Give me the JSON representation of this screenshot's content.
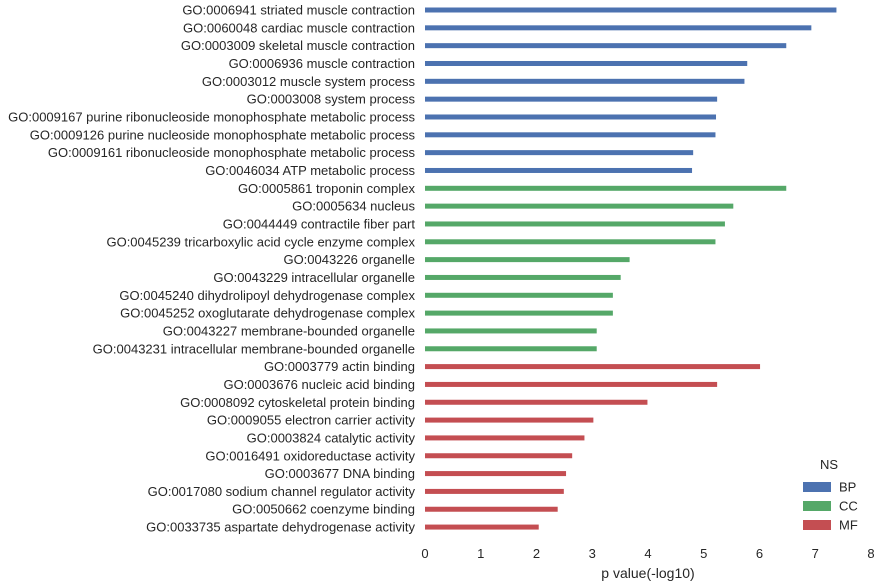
{
  "chart_data": {
    "type": "bar",
    "orientation": "horizontal",
    "xlabel": "p value(-log10)",
    "ylabel": "",
    "xlim": [
      0,
      8
    ],
    "xticks": [
      "0",
      "1",
      "2",
      "3",
      "4",
      "5",
      "6",
      "7",
      "8"
    ],
    "grid": false,
    "legend": {
      "title": "NS",
      "placement": "bottom-right",
      "entries": [
        {
          "name": "BP",
          "color": "#4c72b0"
        },
        {
          "name": "CC",
          "color": "#55a868"
        },
        {
          "name": "MF",
          "color": "#c44e52"
        }
      ]
    },
    "bars": [
      {
        "label": "GO:0006941 striated muscle contraction",
        "value": 7.38,
        "ns": "BP"
      },
      {
        "label": "GO:0060048 cardiac muscle contraction",
        "value": 6.93,
        "ns": "BP"
      },
      {
        "label": "GO:0003009 skeletal muscle contraction",
        "value": 6.48,
        "ns": "BP"
      },
      {
        "label": "GO:0006936 muscle contraction",
        "value": 5.78,
        "ns": "BP"
      },
      {
        "label": "GO:0003012 muscle system process",
        "value": 5.73,
        "ns": "BP"
      },
      {
        "label": "GO:0003008 system process",
        "value": 5.24,
        "ns": "BP"
      },
      {
        "label": "GO:0009167 purine ribonucleoside monophosphate metabolic process",
        "value": 5.22,
        "ns": "BP"
      },
      {
        "label": "GO:0009126 purine nucleoside monophosphate metabolic process",
        "value": 5.21,
        "ns": "BP"
      },
      {
        "label": "GO:0009161 ribonucleoside monophosphate metabolic process",
        "value": 4.81,
        "ns": "BP"
      },
      {
        "label": "GO:0046034 ATP metabolic process",
        "value": 4.79,
        "ns": "BP"
      },
      {
        "label": "GO:0005861 troponin complex",
        "value": 6.48,
        "ns": "CC"
      },
      {
        "label": "GO:0005634 nucleus",
        "value": 5.53,
        "ns": "CC"
      },
      {
        "label": "GO:0044449 contractile fiber part",
        "value": 5.38,
        "ns": "CC"
      },
      {
        "label": "GO:0045239 tricarboxylic acid cycle enzyme complex",
        "value": 5.21,
        "ns": "CC"
      },
      {
        "label": "GO:0043226 organelle",
        "value": 3.67,
        "ns": "CC"
      },
      {
        "label": "GO:0043229 intracellular organelle",
        "value": 3.51,
        "ns": "CC"
      },
      {
        "label": "GO:0045240 dihydrolipoyl dehydrogenase complex",
        "value": 3.37,
        "ns": "CC"
      },
      {
        "label": "GO:0045252 oxoglutarate dehydrogenase complex",
        "value": 3.37,
        "ns": "CC"
      },
      {
        "label": "GO:0043227 membrane-bounded organelle",
        "value": 3.08,
        "ns": "CC"
      },
      {
        "label": "GO:0043231 intracellular membrane-bounded organelle",
        "value": 3.08,
        "ns": "CC"
      },
      {
        "label": "GO:0003779 actin binding",
        "value": 6.01,
        "ns": "MF"
      },
      {
        "label": "GO:0003676 nucleic acid binding",
        "value": 5.24,
        "ns": "MF"
      },
      {
        "label": "GO:0008092 cytoskeletal protein binding",
        "value": 3.99,
        "ns": "MF"
      },
      {
        "label": "GO:0009055 electron carrier activity",
        "value": 3.02,
        "ns": "MF"
      },
      {
        "label": "GO:0003824 catalytic activity",
        "value": 2.86,
        "ns": "MF"
      },
      {
        "label": "GO:0016491 oxidoreductase activity",
        "value": 2.64,
        "ns": "MF"
      },
      {
        "label": "GO:0003677 DNA binding",
        "value": 2.53,
        "ns": "MF"
      },
      {
        "label": "GO:0017080 sodium channel regulator activity",
        "value": 2.49,
        "ns": "MF"
      },
      {
        "label": "GO:0050662 coenzyme binding",
        "value": 2.38,
        "ns": "MF"
      },
      {
        "label": "GO:0033735 aspartate dehydrogenase activity",
        "value": 2.04,
        "ns": "MF"
      }
    ]
  }
}
